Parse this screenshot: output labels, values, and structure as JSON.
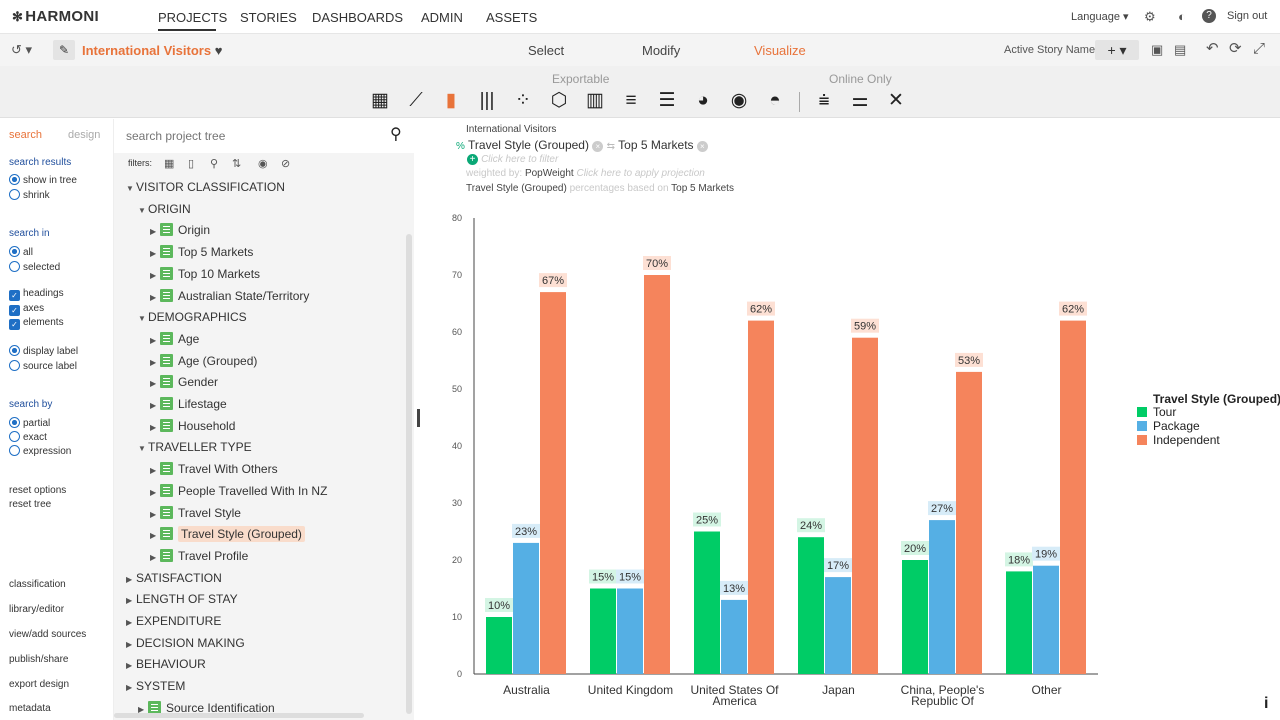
{
  "app": {
    "brand": "HARMONI"
  },
  "nav": [
    "PROJECTS",
    "STORIES",
    "DASHBOARDS",
    "ADMIN",
    "ASSETS"
  ],
  "topright": {
    "language": "Language ▾",
    "signout": "Sign out"
  },
  "project": {
    "title": "International Visitors"
  },
  "modes": [
    "Select",
    "Modify",
    "Visualize"
  ],
  "story": {
    "name": "Active Story Name"
  },
  "ribbon": {
    "exportable": "Exportable",
    "online_only": "Online Only"
  },
  "leftpanel": {
    "tabs": [
      "search",
      "design"
    ],
    "search_results": "search results",
    "show_in_tree": "show in tree",
    "shrink": "shrink",
    "search_in": "search in",
    "all": "all",
    "selected": "selected",
    "headings": "headings",
    "axes": "axes",
    "elements": "elements",
    "display_label": "display label",
    "source_label": "source label",
    "search_by": "search by",
    "partial": "partial",
    "exact": "exact",
    "expression": "expression",
    "reset_options": "reset options",
    "reset_tree": "reset tree",
    "links": [
      "classification",
      "library/editor",
      "view/add sources",
      "publish/share",
      "export design",
      "metadata"
    ]
  },
  "tree": {
    "search_placeholder": "search project tree",
    "filters_label": "filters:",
    "rows": [
      {
        "l": 0,
        "type": "head",
        "label": "VISITOR CLASSIFICATION",
        "open": true
      },
      {
        "l": 1,
        "type": "head",
        "label": "ORIGIN",
        "open": true
      },
      {
        "l": 2,
        "type": "leaf",
        "label": "Origin"
      },
      {
        "l": 2,
        "type": "leaf",
        "label": "Top 5 Markets"
      },
      {
        "l": 2,
        "type": "leaf",
        "label": "Top 10 Markets"
      },
      {
        "l": 2,
        "type": "leaf",
        "label": "Australian State/Territory"
      },
      {
        "l": 1,
        "type": "head",
        "label": "DEMOGRAPHICS",
        "open": true
      },
      {
        "l": 2,
        "type": "leaf",
        "label": "Age"
      },
      {
        "l": 2,
        "type": "leaf",
        "label": "Age (Grouped)"
      },
      {
        "l": 2,
        "type": "leaf",
        "label": "Gender"
      },
      {
        "l": 2,
        "type": "leaf",
        "label": "Lifestage"
      },
      {
        "l": 2,
        "type": "leaf",
        "label": "Household"
      },
      {
        "l": 1,
        "type": "head",
        "label": "TRAVELLER TYPE",
        "open": true
      },
      {
        "l": 2,
        "type": "leaf",
        "label": "Travel With Others"
      },
      {
        "l": 2,
        "type": "leaf",
        "label": "People Travelled With In NZ"
      },
      {
        "l": 2,
        "type": "leaf",
        "label": "Travel Style"
      },
      {
        "l": 2,
        "type": "leaf",
        "label": "Travel Style (Grouped)",
        "selected": true
      },
      {
        "l": 2,
        "type": "leaf",
        "label": "Travel Profile"
      },
      {
        "l": 0,
        "type": "head",
        "label": "SATISFACTION",
        "open": false
      },
      {
        "l": 0,
        "type": "head",
        "label": "LENGTH OF STAY",
        "open": false
      },
      {
        "l": 0,
        "type": "head",
        "label": "EXPENDITURE",
        "open": false
      },
      {
        "l": 0,
        "type": "head",
        "label": "DECISION MAKING",
        "open": false
      },
      {
        "l": 0,
        "type": "head",
        "label": "BEHAVIOUR",
        "open": false
      },
      {
        "l": 0,
        "type": "head",
        "label": "SYSTEM",
        "open": false
      },
      {
        "l": 1,
        "type": "leaf",
        "label": "Source Identification"
      }
    ]
  },
  "header": {
    "dataset": "International Visitors",
    "pct": "%",
    "row_var": "Travel Style (Grouped)",
    "col_var": "Top 5 Markets",
    "filter_placeholder": "Click here to filter",
    "weighted_prefix": "weighted by:",
    "weight": "PopWeight",
    "projection_placeholder": "Click here to apply projection",
    "pct_basis_var": "Travel Style (Grouped)",
    "pct_basis_text": "percentages based on",
    "pct_basis_col": "Top 5 Markets"
  },
  "chart_data": {
    "type": "bar",
    "categories": [
      "Australia",
      "United Kingdom",
      "United States Of America",
      "Japan",
      "China, People's Republic Of",
      "Other"
    ],
    "series": [
      {
        "name": "Tour",
        "color": "#00cc66",
        "values": [
          10,
          15,
          25,
          24,
          20,
          18
        ]
      },
      {
        "name": "Package",
        "color": "#55afe4",
        "values": [
          23,
          15,
          13,
          17,
          27,
          19
        ]
      },
      {
        "name": "Independent",
        "color": "#f5845c",
        "values": [
          67,
          70,
          62,
          59,
          53,
          62
        ]
      }
    ],
    "data_labels": {
      "Tour": [
        "10%",
        "15%",
        "25%",
        "24%",
        "20%",
        "18%"
      ],
      "Package": [
        "23%",
        "15%",
        "13%",
        "17%",
        "27%",
        "19%"
      ],
      "Independent": [
        "67%",
        "70%",
        "62%",
        "59%",
        "53%",
        "62%"
      ]
    },
    "ylim": [
      0,
      80
    ],
    "yticks": [
      0,
      10,
      20,
      30,
      40,
      50,
      60,
      70,
      80
    ],
    "legend_title": "Travel Style (Grouped)",
    "legend_position": "right"
  }
}
